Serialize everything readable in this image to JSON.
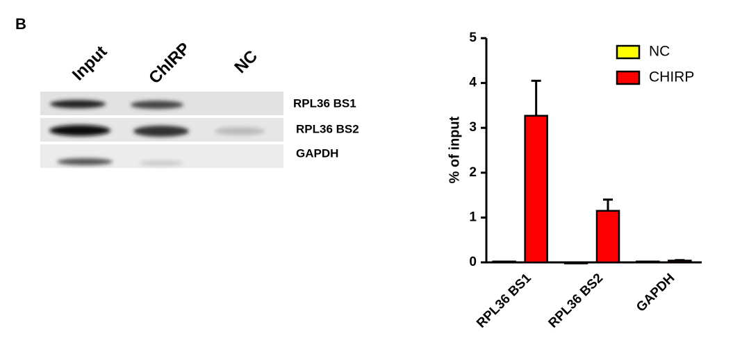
{
  "panel_label": "B",
  "gel": {
    "lanes": [
      "Input",
      "ChIRP",
      "NC"
    ],
    "rows": [
      "RPL36 BS1",
      "RPL36 BS2",
      "GAPDH"
    ]
  },
  "chart_data": {
    "type": "bar",
    "categories": [
      "RPL36 BS1",
      "RPL36 BS2",
      "GAPDH"
    ],
    "series": [
      {
        "name": "NC",
        "color": "#ffff00",
        "values": [
          0.02,
          0,
          0.02
        ]
      },
      {
        "name": "CHIRP",
        "color": "#ff0000",
        "values": [
          3.27,
          1.15,
          0.04
        ],
        "errors": [
          0.78,
          0.25,
          0.01
        ]
      }
    ],
    "y_label": "% of input",
    "ylim": [
      0,
      5
    ],
    "yticks": [
      0,
      1,
      2,
      3,
      4,
      5
    ],
    "legend": "upper right"
  }
}
